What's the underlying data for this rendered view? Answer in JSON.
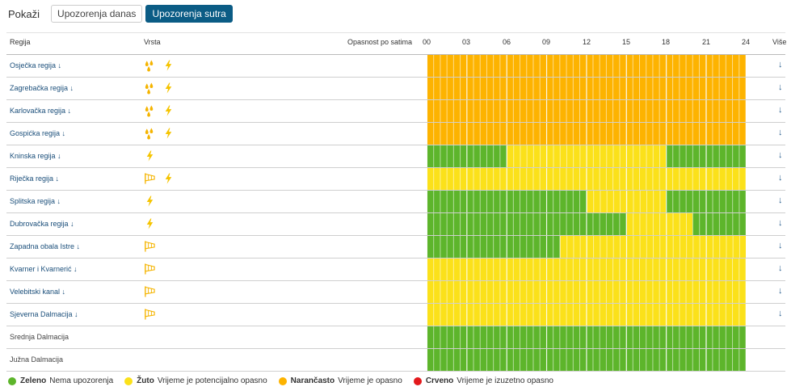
{
  "toolbar": {
    "show_label": "Pokaži",
    "tabs": [
      {
        "label": "Upozorenja danas",
        "active": false
      },
      {
        "label": "Upozorenja sutra",
        "active": true
      }
    ]
  },
  "table": {
    "col_region": "Regija",
    "col_type": "Vrsta",
    "col_danger": "Opasnost po satima",
    "hours": [
      "00",
      "03",
      "06",
      "09",
      "12",
      "15",
      "18",
      "21",
      "24"
    ],
    "col_more": "Više",
    "colors": {
      "green": "#5db52b",
      "yellow": "#fbe11a",
      "orange": "#fdb300",
      "red": "#e3191c"
    },
    "rows": [
      {
        "region": "Osječka regija ↓",
        "types": [
          "rain-icon",
          "lightning-icon"
        ],
        "more": "↓",
        "segments": [
          {
            "c": "orange",
            "h": 24
          }
        ]
      },
      {
        "region": "Zagrebačka regija ↓",
        "types": [
          "rain-icon",
          "lightning-icon"
        ],
        "more": "↓",
        "segments": [
          {
            "c": "orange",
            "h": 24
          }
        ]
      },
      {
        "region": "Karlovačka regija ↓",
        "types": [
          "rain-icon",
          "lightning-icon"
        ],
        "more": "↓",
        "segments": [
          {
            "c": "orange",
            "h": 24
          }
        ]
      },
      {
        "region": "Gospićka regija ↓",
        "types": [
          "rain-icon",
          "lightning-icon"
        ],
        "more": "↓",
        "segments": [
          {
            "c": "orange",
            "h": 24
          }
        ]
      },
      {
        "region": "Kninska regija ↓",
        "types": [
          "lightning-icon"
        ],
        "more": "↓",
        "segments": [
          {
            "c": "green",
            "h": 6
          },
          {
            "c": "yellow",
            "h": 12
          },
          {
            "c": "green",
            "h": 6
          }
        ]
      },
      {
        "region": "Riječka regija ↓",
        "types": [
          "wind-icon",
          "lightning-icon"
        ],
        "more": "↓",
        "segments": [
          {
            "c": "yellow",
            "h": 24
          }
        ]
      },
      {
        "region": "Splitska regija ↓",
        "types": [
          "lightning-icon"
        ],
        "more": "↓",
        "segments": [
          {
            "c": "green",
            "h": 12
          },
          {
            "c": "yellow",
            "h": 6
          },
          {
            "c": "green",
            "h": 6
          }
        ]
      },
      {
        "region": "Dubrovačka regija ↓",
        "types": [
          "lightning-icon"
        ],
        "more": "↓",
        "segments": [
          {
            "c": "green",
            "h": 15
          },
          {
            "c": "yellow",
            "h": 5
          },
          {
            "c": "green",
            "h": 4
          }
        ]
      },
      {
        "region": "Zapadna obala Istre ↓",
        "types": [
          "wind-icon"
        ],
        "more": "↓",
        "segments": [
          {
            "c": "green",
            "h": 10
          },
          {
            "c": "yellow",
            "h": 14
          }
        ]
      },
      {
        "region": "Kvarner i Kvarnerić ↓",
        "types": [
          "wind-icon"
        ],
        "more": "↓",
        "segments": [
          {
            "c": "yellow",
            "h": 24
          }
        ]
      },
      {
        "region": "Velebitski kanal ↓",
        "types": [
          "wind-icon"
        ],
        "more": "↓",
        "segments": [
          {
            "c": "yellow",
            "h": 24
          }
        ]
      },
      {
        "region": "Sjeverna Dalmacija ↓",
        "types": [
          "wind-icon"
        ],
        "more": "↓",
        "segments": [
          {
            "c": "yellow",
            "h": 24
          }
        ]
      },
      {
        "region": "Srednja Dalmacija",
        "types": [],
        "more": "",
        "segments": [
          {
            "c": "green",
            "h": 24
          }
        ]
      },
      {
        "region": "Južna Dalmacija",
        "types": [],
        "more": "",
        "segments": [
          {
            "c": "green",
            "h": 24
          }
        ]
      }
    ]
  },
  "legend": [
    {
      "color": "#5db52b",
      "name": "Zeleno",
      "desc": "Nema upozorenja"
    },
    {
      "color": "#fbe11a",
      "name": "Žuto",
      "desc": "Vrijeme je potencijalno opasno"
    },
    {
      "color": "#fdb300",
      "name": "Narančasto",
      "desc": "Vrijeme je opasno"
    },
    {
      "color": "#e3191c",
      "name": "Crveno",
      "desc": "Vrijeme je izuzetno opasno"
    }
  ]
}
